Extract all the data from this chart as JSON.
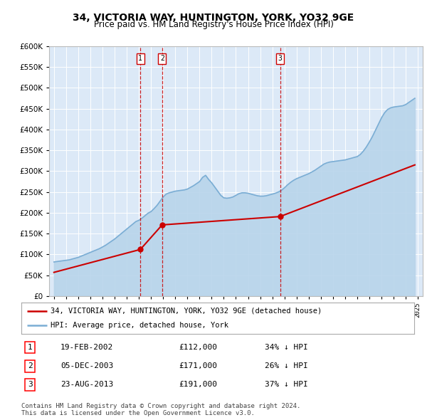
{
  "title": "34, VICTORIA WAY, HUNTINGTON, YORK, YO32 9GE",
  "subtitle": "Price paid vs. HM Land Registry's House Price Index (HPI)",
  "ylim": [
    0,
    600000
  ],
  "yticks": [
    0,
    50000,
    100000,
    150000,
    200000,
    250000,
    300000,
    350000,
    400000,
    450000,
    500000,
    550000,
    600000
  ],
  "sales": [
    {
      "label": "1",
      "date": 2002.12,
      "price": 112000,
      "year_label": "19-FEB-2002",
      "pct": "34%",
      "dir": "↓"
    },
    {
      "label": "2",
      "date": 2003.92,
      "price": 171000,
      "year_label": "05-DEC-2003",
      "pct": "26%",
      "dir": "↓"
    },
    {
      "label": "3",
      "date": 2013.64,
      "price": 191000,
      "year_label": "23-AUG-2013",
      "pct": "37%",
      "dir": "↓"
    }
  ],
  "sale_prices": [
    112000,
    171000,
    191000
  ],
  "sale_dates": [
    2002.12,
    2003.92,
    2013.64
  ],
  "hpi_years": [
    1995.0,
    1995.25,
    1995.5,
    1995.75,
    1996.0,
    1996.25,
    1996.5,
    1996.75,
    1997.0,
    1997.25,
    1997.5,
    1997.75,
    1998.0,
    1998.25,
    1998.5,
    1998.75,
    1999.0,
    1999.25,
    1999.5,
    1999.75,
    2000.0,
    2000.25,
    2000.5,
    2000.75,
    2001.0,
    2001.25,
    2001.5,
    2001.75,
    2002.0,
    2002.25,
    2002.5,
    2002.75,
    2003.0,
    2003.25,
    2003.5,
    2003.75,
    2004.0,
    2004.25,
    2004.5,
    2004.75,
    2005.0,
    2005.25,
    2005.5,
    2005.75,
    2006.0,
    2006.25,
    2006.5,
    2006.75,
    2007.0,
    2007.25,
    2007.5,
    2007.75,
    2008.0,
    2008.25,
    2008.5,
    2008.75,
    2009.0,
    2009.25,
    2009.5,
    2009.75,
    2010.0,
    2010.25,
    2010.5,
    2010.75,
    2011.0,
    2011.25,
    2011.5,
    2011.75,
    2012.0,
    2012.25,
    2012.5,
    2012.75,
    2013.0,
    2013.25,
    2013.5,
    2013.75,
    2014.0,
    2014.25,
    2014.5,
    2014.75,
    2015.0,
    2015.25,
    2015.5,
    2015.75,
    2016.0,
    2016.25,
    2016.5,
    2016.75,
    2017.0,
    2017.25,
    2017.5,
    2017.75,
    2018.0,
    2018.25,
    2018.5,
    2018.75,
    2019.0,
    2019.25,
    2019.5,
    2019.75,
    2020.0,
    2020.25,
    2020.5,
    2020.75,
    2021.0,
    2021.25,
    2021.5,
    2021.75,
    2022.0,
    2022.25,
    2022.5,
    2022.75,
    2023.0,
    2023.25,
    2023.5,
    2023.75,
    2024.0,
    2024.25,
    2024.5,
    2024.75
  ],
  "hpi_values": [
    82000,
    83000,
    84000,
    85000,
    86000,
    87000,
    89000,
    91000,
    93000,
    96000,
    99000,
    102000,
    105000,
    108000,
    111000,
    114000,
    118000,
    122000,
    127000,
    132000,
    137000,
    143000,
    149000,
    155000,
    161000,
    167000,
    173000,
    179000,
    182000,
    187000,
    193000,
    199000,
    203000,
    210000,
    218000,
    228000,
    238000,
    245000,
    248000,
    250000,
    252000,
    253000,
    254000,
    255000,
    257000,
    261000,
    265000,
    270000,
    275000,
    285000,
    290000,
    280000,
    272000,
    262000,
    252000,
    242000,
    236000,
    235000,
    236000,
    238000,
    242000,
    246000,
    248000,
    248000,
    247000,
    245000,
    243000,
    241000,
    240000,
    240000,
    241000,
    243000,
    245000,
    247000,
    250000,
    254000,
    260000,
    267000,
    273000,
    278000,
    282000,
    285000,
    288000,
    291000,
    294000,
    298000,
    302000,
    307000,
    312000,
    317000,
    320000,
    322000,
    323000,
    324000,
    325000,
    326000,
    327000,
    329000,
    331000,
    333000,
    335000,
    340000,
    348000,
    358000,
    370000,
    383000,
    398000,
    413000,
    428000,
    440000,
    448000,
    452000,
    454000,
    455000,
    456000,
    457000,
    460000,
    465000,
    470000,
    475000
  ],
  "red_line_x": [
    1995.0,
    2002.12,
    2003.92,
    2013.64,
    2024.75
  ],
  "red_line_y": [
    57000,
    112000,
    171000,
    191000,
    315000
  ],
  "legend_red": "34, VICTORIA WAY, HUNTINGTON, YORK, YO32 9GE (detached house)",
  "legend_blue": "HPI: Average price, detached house, York",
  "footnote": "Contains HM Land Registry data © Crown copyright and database right 2024.\nThis data is licensed under the Open Government Licence v3.0.",
  "bg_color": "#ffffff",
  "plot_bg_color": "#dce9f7",
  "grid_color": "#ffffff",
  "red_color": "#cc0000",
  "blue_color": "#7aadd4",
  "blue_fill_color": "#b8d4ea",
  "vline_color": "#cc0000",
  "title_fontsize": 10,
  "subtitle_fontsize": 8.5,
  "axis_fontsize": 8,
  "legend_fontsize": 7.5,
  "table_fontsize": 8,
  "footnote_fontsize": 6.5
}
